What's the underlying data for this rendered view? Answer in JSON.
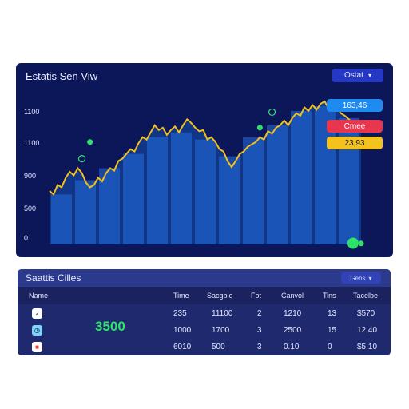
{
  "overview": {
    "title": "Estatis Sen Viw",
    "dropdown": "Ostat",
    "badges": [
      {
        "text": "163,46",
        "color": "#1d8bf0"
      },
      {
        "text": "Cmee",
        "color": "#e8364f"
      },
      {
        "text": "23,93",
        "color": "#f3c21d"
      }
    ]
  },
  "chart_data": {
    "type": "area",
    "y_ticks": [
      "1100",
      "1100",
      "900",
      "500",
      "0"
    ],
    "ylim": [
      0,
      1200
    ],
    "x": [
      0,
      1,
      2,
      3,
      4,
      5,
      6,
      7,
      8,
      9,
      10,
      11,
      12,
      13,
      14,
      15,
      16,
      17,
      18,
      19,
      20,
      21,
      22,
      23,
      24,
      25,
      26,
      27,
      28,
      29,
      30,
      31,
      32,
      33,
      34,
      35,
      36,
      37,
      38,
      39,
      40,
      41,
      42,
      43,
      44,
      45,
      46,
      47,
      48,
      49,
      50,
      51,
      52,
      53,
      54,
      55,
      56,
      57,
      58,
      59,
      60,
      61,
      62,
      63,
      64,
      65,
      66,
      67,
      68,
      69,
      70,
      71,
      72,
      73,
      74,
      75,
      76,
      77
    ],
    "values": [
      450,
      420,
      500,
      480,
      560,
      610,
      580,
      640,
      600,
      520,
      480,
      500,
      560,
      530,
      600,
      640,
      620,
      700,
      720,
      760,
      800,
      780,
      850,
      900,
      880,
      940,
      1000,
      960,
      980,
      920,
      960,
      990,
      940,
      1000,
      1050,
      1020,
      980,
      950,
      960,
      880,
      900,
      860,
      800,
      780,
      700,
      650,
      700,
      760,
      780,
      820,
      840,
      860,
      900,
      880,
      950,
      930,
      980,
      1000,
      1040,
      1000,
      1060,
      1100,
      1080,
      1150,
      1120,
      1170,
      1130,
      1180,
      1200,
      1140,
      1180,
      1150,
      1100,
      1080,
      1050,
      1020,
      1000,
      980
    ],
    "bar_values": [
      420,
      540,
      640,
      760,
      900,
      940,
      880,
      740,
      900,
      1000,
      1120,
      1160,
      1060
    ],
    "markers": [
      {
        "x": 10,
        "y": 860,
        "kind": "dot"
      },
      {
        "x": 8,
        "y": 720,
        "kind": "ring"
      },
      {
        "x": 52,
        "y": 980,
        "kind": "dot"
      },
      {
        "x": 55,
        "y": 1110,
        "kind": "ring"
      },
      {
        "x": 75,
        "y": 10,
        "kind": "big-dot"
      },
      {
        "x": 77,
        "y": 8,
        "kind": "dot"
      }
    ],
    "grid": false
  },
  "stats": {
    "title": "Saattis Cilles",
    "dropdown": "Gens",
    "columns": [
      "Name",
      "Time",
      "Sacgble",
      "Fot",
      "Canvol",
      "Tins",
      "Tacelbe"
    ],
    "highlight_value": "3500",
    "rows": [
      {
        "icon": "🗸",
        "cells": [
          "235",
          "11100",
          "2",
          "1210",
          "13",
          "$570"
        ]
      },
      {
        "icon": "◷",
        "cells": [
          "1000",
          "1700",
          "3",
          "2500",
          "15",
          "12,40"
        ]
      },
      {
        "icon": "■",
        "cells": [
          "6010",
          "500",
          "3",
          "0.10",
          "0",
          "$5,10"
        ]
      }
    ]
  }
}
